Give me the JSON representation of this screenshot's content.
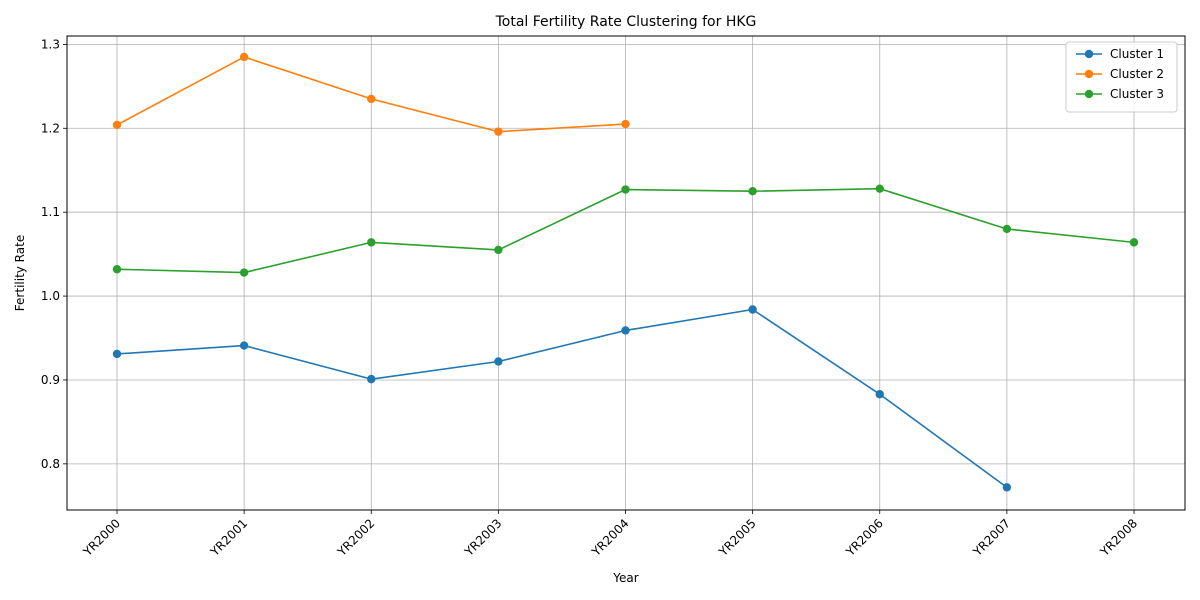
{
  "chart_data": {
    "type": "line",
    "title": "Total Fertility Rate Clustering for HKG",
    "xlabel": "Year",
    "ylabel": "Fertility Rate",
    "categories": [
      "YR2000",
      "YR2001",
      "YR2002",
      "YR2003",
      "YR2004",
      "YR2005",
      "YR2006",
      "YR2007",
      "YR2008"
    ],
    "ylim": [
      0.745,
      1.31
    ],
    "yticks": [
      0.8,
      0.9,
      1.0,
      1.1,
      1.2,
      1.3
    ],
    "ytick_labels": [
      "0.8",
      "0.9",
      "1.0",
      "1.1",
      "1.2",
      "1.3"
    ],
    "grid": true,
    "legend_position": "top-right",
    "marker": "circle",
    "series": [
      {
        "name": "Cluster 1",
        "color": "#1f77b4",
        "values": [
          0.931,
          0.941,
          0.901,
          0.922,
          0.959,
          0.984,
          0.883,
          0.772,
          null
        ]
      },
      {
        "name": "Cluster 2",
        "color": "#ff7f0e",
        "values": [
          1.204,
          1.285,
          1.235,
          1.196,
          1.205,
          null,
          null,
          null,
          null
        ]
      },
      {
        "name": "Cluster 3",
        "color": "#2ca02c",
        "values": [
          1.032,
          1.028,
          1.064,
          1.055,
          1.127,
          1.125,
          1.128,
          1.08,
          1.064
        ]
      }
    ]
  }
}
